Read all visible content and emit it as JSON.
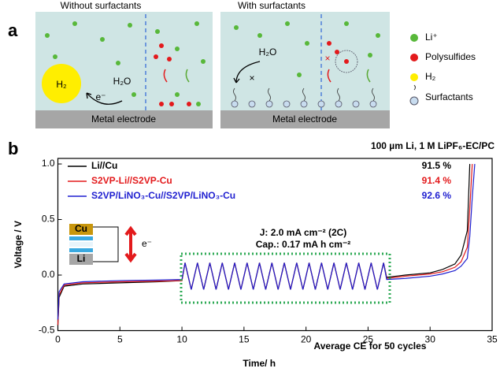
{
  "schematic": {
    "panel_label": "a",
    "left": {
      "title": "Without surfactants",
      "h2": "H₂",
      "electron": "e⁻",
      "water": "H₂O",
      "electrode": "Metal electrode"
    },
    "right": {
      "title": "With surfactants",
      "water": "H₂O",
      "cross_water": "×",
      "cross_ps": "×",
      "electrode": "Metal electrode"
    },
    "legend": [
      "Li⁺",
      "Polysulfides",
      "H₂",
      "Surfactants"
    ]
  },
  "chart_data": {
    "type": "line",
    "panel_label": "b",
    "annotation": "100 µm Li, 1 M LiPF₆-EC/PC",
    "current_label": "J: 2.0 mA cm⁻² (2C)",
    "capacity_label": "Cap.: 0.17 mA h cm⁻²",
    "ce_caption": "Average CE for 50 cycles",
    "ce_labels": [
      "91.5 %",
      "91.4 %",
      "92.6 %"
    ],
    "x_label": "Time/ h",
    "y_label": "Voltage / V",
    "xlim": [
      0,
      35
    ],
    "xticks": [
      0,
      5,
      10,
      15,
      20,
      25,
      30,
      35
    ],
    "ylim": [
      -0.5,
      1.05
    ],
    "yticks": [
      -0.5,
      {
        "value": 0,
        "label": "0.0"
      },
      0.5,
      {
        "value": 1,
        "label": "1.0"
      }
    ],
    "x": [
      0,
      0.1,
      0.5,
      2,
      5,
      8,
      10,
      10.25,
      10.75,
      11.25,
      11.75,
      12.25,
      12.75,
      13.25,
      13.75,
      14.25,
      14.75,
      15.25,
      15.75,
      16.25,
      16.75,
      17.25,
      17.75,
      18.25,
      18.75,
      19.25,
      19.75,
      20.25,
      20.75,
      21.25,
      21.75,
      22.25,
      22.75,
      23.25,
      23.75,
      24.25,
      24.75,
      25.25,
      25.75,
      26.25,
      26.5,
      28,
      30,
      31,
      32,
      32.5,
      33,
      33.2,
      33.4,
      33.6
    ],
    "series": [
      {
        "name": "Li//Cu",
        "color": "#000000",
        "values": [
          -0.45,
          -0.2,
          -0.1,
          -0.08,
          -0.07,
          -0.06,
          -0.05,
          0.11,
          -0.13,
          0.11,
          -0.13,
          0.11,
          -0.13,
          0.11,
          -0.13,
          0.11,
          -0.13,
          0.11,
          -0.13,
          0.11,
          -0.13,
          0.11,
          -0.13,
          0.11,
          -0.13,
          0.11,
          -0.13,
          0.11,
          -0.13,
          0.11,
          -0.13,
          0.11,
          -0.13,
          0.11,
          -0.13,
          0.11,
          -0.13,
          0.11,
          -0.13,
          0.11,
          -0.02,
          0,
          0.02,
          0.05,
          0.1,
          0.18,
          0.4,
          1.0,
          null,
          null
        ]
      },
      {
        "name": "S2VP-Li//S2VP-Cu",
        "color": "#e31a1c",
        "values": [
          -0.45,
          -0.18,
          -0.09,
          -0.07,
          -0.06,
          -0.055,
          -0.05,
          0.11,
          -0.13,
          0.11,
          -0.13,
          0.11,
          -0.13,
          0.11,
          -0.13,
          0.11,
          -0.13,
          0.11,
          -0.13,
          0.11,
          -0.13,
          0.11,
          -0.13,
          0.11,
          -0.13,
          0.11,
          -0.13,
          0.11,
          -0.13,
          0.11,
          -0.13,
          0.11,
          -0.13,
          0.11,
          -0.13,
          0.11,
          -0.13,
          0.11,
          -0.13,
          0.11,
          -0.03,
          -0.01,
          0.01,
          0.03,
          0.07,
          0.12,
          0.25,
          0.6,
          1.0,
          null
        ]
      },
      {
        "name": "S2VP/LiNO₃-Cu//S2VP/LiNO₃-Cu",
        "color": "#1f1fd0",
        "values": [
          -0.4,
          -0.15,
          -0.08,
          -0.06,
          -0.05,
          -0.045,
          -0.04,
          0.11,
          -0.13,
          0.11,
          -0.13,
          0.11,
          -0.13,
          0.11,
          -0.13,
          0.11,
          -0.13,
          0.11,
          -0.13,
          0.11,
          -0.13,
          0.11,
          -0.13,
          0.11,
          -0.13,
          0.11,
          -0.13,
          0.11,
          -0.13,
          0.11,
          -0.13,
          0.11,
          -0.13,
          0.11,
          -0.13,
          0.11,
          -0.13,
          0.11,
          -0.13,
          0.11,
          -0.04,
          -0.03,
          -0.01,
          0.01,
          0.04,
          0.08,
          0.15,
          0.35,
          0.7,
          1.0
        ]
      }
    ]
  }
}
